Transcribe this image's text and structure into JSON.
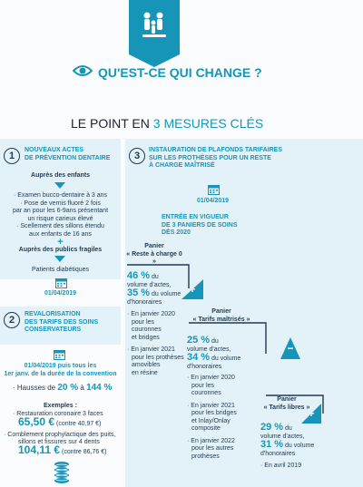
{
  "header": {
    "title": "QU'EST-CE QUI CHANGE ?",
    "subtitle_pre": "LE POINT EN ",
    "subtitle_accent": "3 MESURES CLÉS"
  },
  "section1": {
    "number": "1",
    "title_line1": "NOUVEAUX ACTES",
    "title_line2": "DE PRÉVENTION DENTAIRE",
    "children_head": "Auprès des enfants",
    "children_items": [
      "· Examen bucco-dentaire à 3 ans",
      "· Pose de vernis fluoré 2 fois",
      "par an pour les 6-9ans présentant",
      "un risque carieux élevé",
      "· Scellement des sillons étendu",
      "aux enfants de 16 ans"
    ],
    "fragile_plus": "+",
    "fragile_head": "Auprès des publics fragiles",
    "fragile_item": "Patients diabétiques",
    "date": "01/04/2019"
  },
  "section2": {
    "number": "2",
    "title_line1": "REVALORISATION",
    "title_line2": "DES TARIFS DES SOINS",
    "title_line3": "CONSERVATEURS",
    "date_line1": "01/04/2019 puis tous les",
    "date_line2": "1er janv. de la durée de la convention",
    "hausses_pre": "· Hausses de ",
    "hausses_from": "20 %",
    "hausses_mid": " à ",
    "hausses_to": "144 %",
    "examples_head": "Exemples :",
    "ex1_label": "· Restauration coronaire 3 faces",
    "ex1_price": "65,50 €",
    "ex1_old": " (contre 40,97 €)",
    "ex2_label1": "· Comblement prophylactique des puits,",
    "ex2_label2": "sillons et fissures sur 4 dents",
    "ex2_price": "104,11 €",
    "ex2_old": " (contre 86,76 €)"
  },
  "section3": {
    "number": "3",
    "title_line1": "INSTAURATION DE PLAFONDS TARIFAIRES",
    "title_line2": "SUR LES PROTHÈSES POUR UN RESTE",
    "title_line3": "À CHARGE MAÎTRISÉ",
    "date": "01/04/2019",
    "entry_line1": "ENTRÉE EN VIGUEUR",
    "entry_line2": "DE 3 PANIERS DE SOINS",
    "entry_line3": "DÈS 2020",
    "plus_symbol": "+",
    "minus_symbol": "−",
    "panier1": {
      "head1": "Panier",
      "head2": "« Reste à charge 0 »",
      "pct1": "46 %",
      "txt1a": " du",
      "txt1b": "volume d'actes,",
      "pct2": "35 %",
      "txt2": " du volume",
      "txt3": "d'honoraires",
      "items": [
        "· En janvier 2020",
        "pour les",
        "couronnes",
        "et bridges",
        "",
        "· En janvier 2021",
        "pour les prothèses",
        "amovibles",
        "en résine"
      ]
    },
    "panier2": {
      "head1": "Panier",
      "head2": "« Tarifs maîtrisés »",
      "pct1": "25 %",
      "txt1a": " du",
      "txt1b": "volume d'actes,",
      "pct2": "34 %",
      "txt2": " du volume",
      "txt3": "d'honoraires",
      "items": [
        "· En janvier 2020",
        "pour les",
        "couronnes",
        "",
        "· En janvier 2021",
        "pour les bridges",
        "et Inlay/Onlay",
        "composite",
        "",
        "· En janvier 2022",
        "pour les autres",
        "prothèses"
      ]
    },
    "panier3": {
      "head1": "Panier",
      "head2": "« Tarifs libres »",
      "pct1": "29 %",
      "txt1a": " du",
      "txt1b": "volume d'actes,",
      "pct2": "31 %",
      "txt2": " du volume",
      "txt3": "d'honoraires",
      "items": [
        "· En avril 2019"
      ]
    }
  },
  "colors": {
    "accent": "#1795b8",
    "panel": "#e3f2f8",
    "text": "#1f3a52"
  },
  "icons": [
    "family-icon",
    "eye-icon",
    "calendar-icon",
    "arrow-down-icon",
    "coins-icon"
  ]
}
